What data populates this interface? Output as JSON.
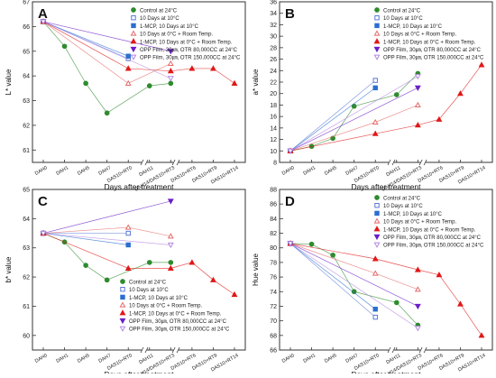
{
  "figure": {
    "categories": [
      "DAH0",
      "DAH1",
      "DAH5",
      "DAH7",
      "DAS10+RT0",
      "DAH11",
      "DAH14/DAS10+RT3",
      "DAS10+RT6",
      "DAS10+RT9",
      "DAS10+RT14"
    ],
    "xlabel": "Days after treatment",
    "legend_entries": [
      {
        "name": "Control at 24°C",
        "color": "#2e8b2e",
        "marker": "circle",
        "filled": true
      },
      {
        "name": "10 Days at 10°C",
        "color": "#5a78d8",
        "marker": "square",
        "filled": false
      },
      {
        "name": "1-MCP, 10 Days at 10°C",
        "color": "#2a6fd0",
        "marker": "square",
        "filled": true
      },
      {
        "name": "10 Days at 0°C + Room Temp.",
        "color": "#e56b6b",
        "marker": "triangle-up",
        "filled": false
      },
      {
        "name": "1-MCP, 10 Days at 0°C + Room Temp.",
        "color": "#e01818",
        "marker": "triangle-up",
        "filled": true
      },
      {
        "name": "OPP Film, 30㎛, OTR 80,000CC at 24°C",
        "color": "#6a1fc8",
        "marker": "triangle-down",
        "filled": true
      },
      {
        "name": "OPP Film, 30㎛, OTR 150,000CC at 24°C",
        "color": "#b48ae0",
        "marker": "triangle-down",
        "filled": false
      }
    ]
  },
  "chart_data": [
    {
      "panel": "A",
      "type": "line",
      "ylabel": "L* value",
      "ylim": [
        60.5,
        67
      ],
      "yticks": [
        61,
        62,
        63,
        64,
        65,
        66,
        67
      ],
      "series": [
        {
          "name": "Control at 24°C",
          "points": [
            [
              0,
              66.2
            ],
            [
              1,
              65.2
            ],
            [
              2,
              63.7
            ],
            [
              3,
              62.5
            ],
            [
              5,
              63.6
            ],
            [
              6,
              63.7
            ]
          ]
        },
        {
          "name": "10 Days at 10°C",
          "points": [
            [
              0,
              66.2
            ],
            [
              4,
              64.7
            ]
          ]
        },
        {
          "name": "1-MCP, 10 Days at 10°C",
          "points": [
            [
              0,
              66.2
            ],
            [
              4,
              64.8
            ]
          ]
        },
        {
          "name": "10 Days at 0°C + Room Temp.",
          "points": [
            [
              0,
              66.2
            ],
            [
              4,
              63.7
            ],
            [
              6,
              64.5
            ]
          ]
        },
        {
          "name": "1-MCP, 10 Days at 0°C + Room Temp.",
          "points": [
            [
              0,
              66.2
            ],
            [
              4,
              64.3
            ],
            [
              6,
              64.2
            ],
            [
              7,
              64.3
            ],
            [
              8,
              64.3
            ],
            [
              9,
              63.7
            ]
          ]
        },
        {
          "name": "OPP Film, 30㎛, OTR 80,000CC at 24°C",
          "points": [
            [
              0,
              66.2
            ],
            [
              6,
              65.0
            ]
          ]
        },
        {
          "name": "OPP Film, 30㎛, OTR 150,000CC at 24°C",
          "points": [
            [
              0,
              66.2
            ],
            [
              6,
              63.9
            ]
          ]
        }
      ]
    },
    {
      "panel": "B",
      "type": "line",
      "ylabel": "a* value",
      "ylim": [
        8,
        36
      ],
      "yticks": [
        8,
        10,
        12,
        14,
        16,
        18,
        20,
        22,
        24,
        26,
        28,
        30,
        32,
        34,
        36
      ],
      "series": [
        {
          "name": "Control at 24°C",
          "points": [
            [
              0,
              10.0
            ],
            [
              1,
              10.8
            ],
            [
              2,
              12.2
            ],
            [
              3,
              17.8
            ],
            [
              5,
              19.8
            ],
            [
              6,
              23.5
            ]
          ]
        },
        {
          "name": "10 Days at 10°C",
          "points": [
            [
              0,
              10.0
            ],
            [
              4,
              22.3
            ]
          ]
        },
        {
          "name": "1-MCP, 10 Days at 10°C",
          "points": [
            [
              0,
              10.0
            ],
            [
              4,
              21.0
            ]
          ]
        },
        {
          "name": "10 Days at 0°C + Room Temp.",
          "points": [
            [
              0,
              10.0
            ],
            [
              4,
              15.0
            ],
            [
              6,
              18.0
            ]
          ]
        },
        {
          "name": "1-MCP, 10 Days at 0°C + Room Temp.",
          "points": [
            [
              0,
              10.0
            ],
            [
              4,
              13.0
            ],
            [
              6,
              14.5
            ],
            [
              7,
              15.5
            ],
            [
              8,
              20.0
            ],
            [
              9,
              25.0
            ]
          ]
        },
        {
          "name": "OPP Film, 30㎛, OTR 80,000CC at 24°C",
          "points": [
            [
              0,
              10.0
            ],
            [
              6,
              21.0
            ]
          ]
        },
        {
          "name": "OPP Film, 30㎛, OTR 150,000CC at 24°C",
          "points": [
            [
              0,
              10.0
            ],
            [
              6,
              23.0
            ]
          ]
        }
      ]
    },
    {
      "panel": "C",
      "type": "line",
      "ylabel": "b* value",
      "ylim": [
        59.5,
        65
      ],
      "yticks": [
        60,
        61,
        62,
        63,
        64,
        65
      ],
      "series": [
        {
          "name": "Control at 24°C",
          "points": [
            [
              0,
              63.5
            ],
            [
              1,
              63.2
            ],
            [
              2,
              62.4
            ],
            [
              3,
              61.9
            ],
            [
              5,
              62.5
            ],
            [
              6,
              62.5
            ]
          ]
        },
        {
          "name": "10 Days at 10°C",
          "points": [
            [
              0,
              63.5
            ],
            [
              4,
              63.5
            ]
          ]
        },
        {
          "name": "1-MCP, 10 Days at 10°C",
          "points": [
            [
              0,
              63.5
            ],
            [
              4,
              63.1
            ]
          ]
        },
        {
          "name": "10 Days at 0°C + Room Temp.",
          "points": [
            [
              0,
              63.5
            ],
            [
              4,
              63.7
            ],
            [
              6,
              63.4
            ]
          ]
        },
        {
          "name": "1-MCP, 10 Days at 0°C + Room Temp.",
          "points": [
            [
              0,
              63.5
            ],
            [
              4,
              62.3
            ],
            [
              6,
              62.3
            ],
            [
              7,
              62.5
            ],
            [
              8,
              61.9
            ],
            [
              9,
              61.4
            ]
          ]
        },
        {
          "name": "OPP Film, 30㎛, OTR 80,000CC at 24°C",
          "points": [
            [
              0,
              63.5
            ],
            [
              6,
              64.6
            ]
          ]
        },
        {
          "name": "OPP Film, 30㎛, OTR 150,000CC at 24°C",
          "points": [
            [
              0,
              63.5
            ],
            [
              6,
              63.1
            ]
          ]
        }
      ]
    },
    {
      "panel": "D",
      "type": "line",
      "ylabel": "Hue value",
      "ylim": [
        66,
        88
      ],
      "yticks": [
        66,
        68,
        70,
        72,
        74,
        76,
        78,
        80,
        82,
        84,
        86,
        88
      ],
      "series": [
        {
          "name": "Control at 24°C",
          "points": [
            [
              0,
              80.6
            ],
            [
              1,
              80.5
            ],
            [
              2,
              79.0
            ],
            [
              3,
              74.0
            ],
            [
              5,
              72.5
            ],
            [
              6,
              69.4
            ]
          ]
        },
        {
          "name": "10 Days at 10°C",
          "points": [
            [
              0,
              80.6
            ],
            [
              4,
              70.5
            ]
          ]
        },
        {
          "name": "1-MCP, 10 Days at 10°C",
          "points": [
            [
              0,
              80.6
            ],
            [
              4,
              71.6
            ]
          ]
        },
        {
          "name": "10 Days at 0°C + Room Temp.",
          "points": [
            [
              0,
              80.6
            ],
            [
              4,
              76.5
            ],
            [
              6,
              74.3
            ]
          ]
        },
        {
          "name": "1-MCP, 10 Days at 0°C + Room Temp.",
          "points": [
            [
              0,
              80.6
            ],
            [
              4,
              78.5
            ],
            [
              6,
              77.0
            ],
            [
              7,
              76.3
            ],
            [
              8,
              72.3
            ],
            [
              9,
              68.0
            ]
          ]
        },
        {
          "name": "OPP Film, 30㎛, OTR 80,000CC at 24°C",
          "points": [
            [
              0,
              80.6
            ],
            [
              6,
              72.0
            ]
          ]
        },
        {
          "name": "OPP Film, 30㎛, OTR 150,000CC at 24°C",
          "points": [
            [
              0,
              80.6
            ],
            [
              6,
              69.0
            ]
          ]
        }
      ]
    }
  ]
}
